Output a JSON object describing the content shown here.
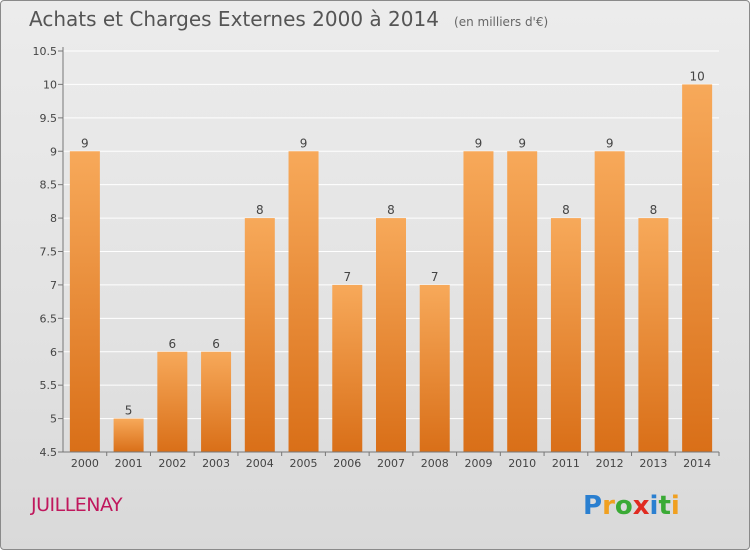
{
  "header": {
    "title": "Achats et Charges Externes 2000 à 2014",
    "subtitle": "(en milliers d'€)"
  },
  "commune": "JUILLENAY",
  "logo": {
    "letters": [
      "P",
      "r",
      "o",
      "x",
      "i",
      "t",
      "i"
    ],
    "colors": [
      "#2a7fd0",
      "#f0a020",
      "#3aaa35",
      "#e02a20",
      "#2a7fd0",
      "#3aaa35",
      "#f0a020"
    ]
  },
  "colors": {
    "bar_top": "#f7a95a",
    "bar_bottom": "#d96f18",
    "grid": "#ffffff",
    "axis": "#777777",
    "text": "#444444"
  },
  "chart_data": {
    "type": "bar",
    "categories": [
      "2000",
      "2001",
      "2002",
      "2003",
      "2004",
      "2005",
      "2006",
      "2007",
      "2008",
      "2009",
      "2010",
      "2011",
      "2012",
      "2013",
      "2014"
    ],
    "values": [
      9,
      5,
      6,
      6,
      8,
      9,
      7,
      8,
      7,
      9,
      9,
      8,
      9,
      8,
      10
    ],
    "data_labels": [
      "9",
      "5",
      "6",
      "6",
      "8",
      "9",
      "7",
      "8",
      "7",
      "9",
      "9",
      "8",
      "9",
      "8",
      "10"
    ],
    "yticks": [
      "4.5",
      "5",
      "5.5",
      "6",
      "6.5",
      "7",
      "7.5",
      "8",
      "8.5",
      "9",
      "9.5",
      "10",
      "10.5"
    ],
    "ylim": [
      4.5,
      10.5
    ],
    "grid": true,
    "legend": "none"
  }
}
